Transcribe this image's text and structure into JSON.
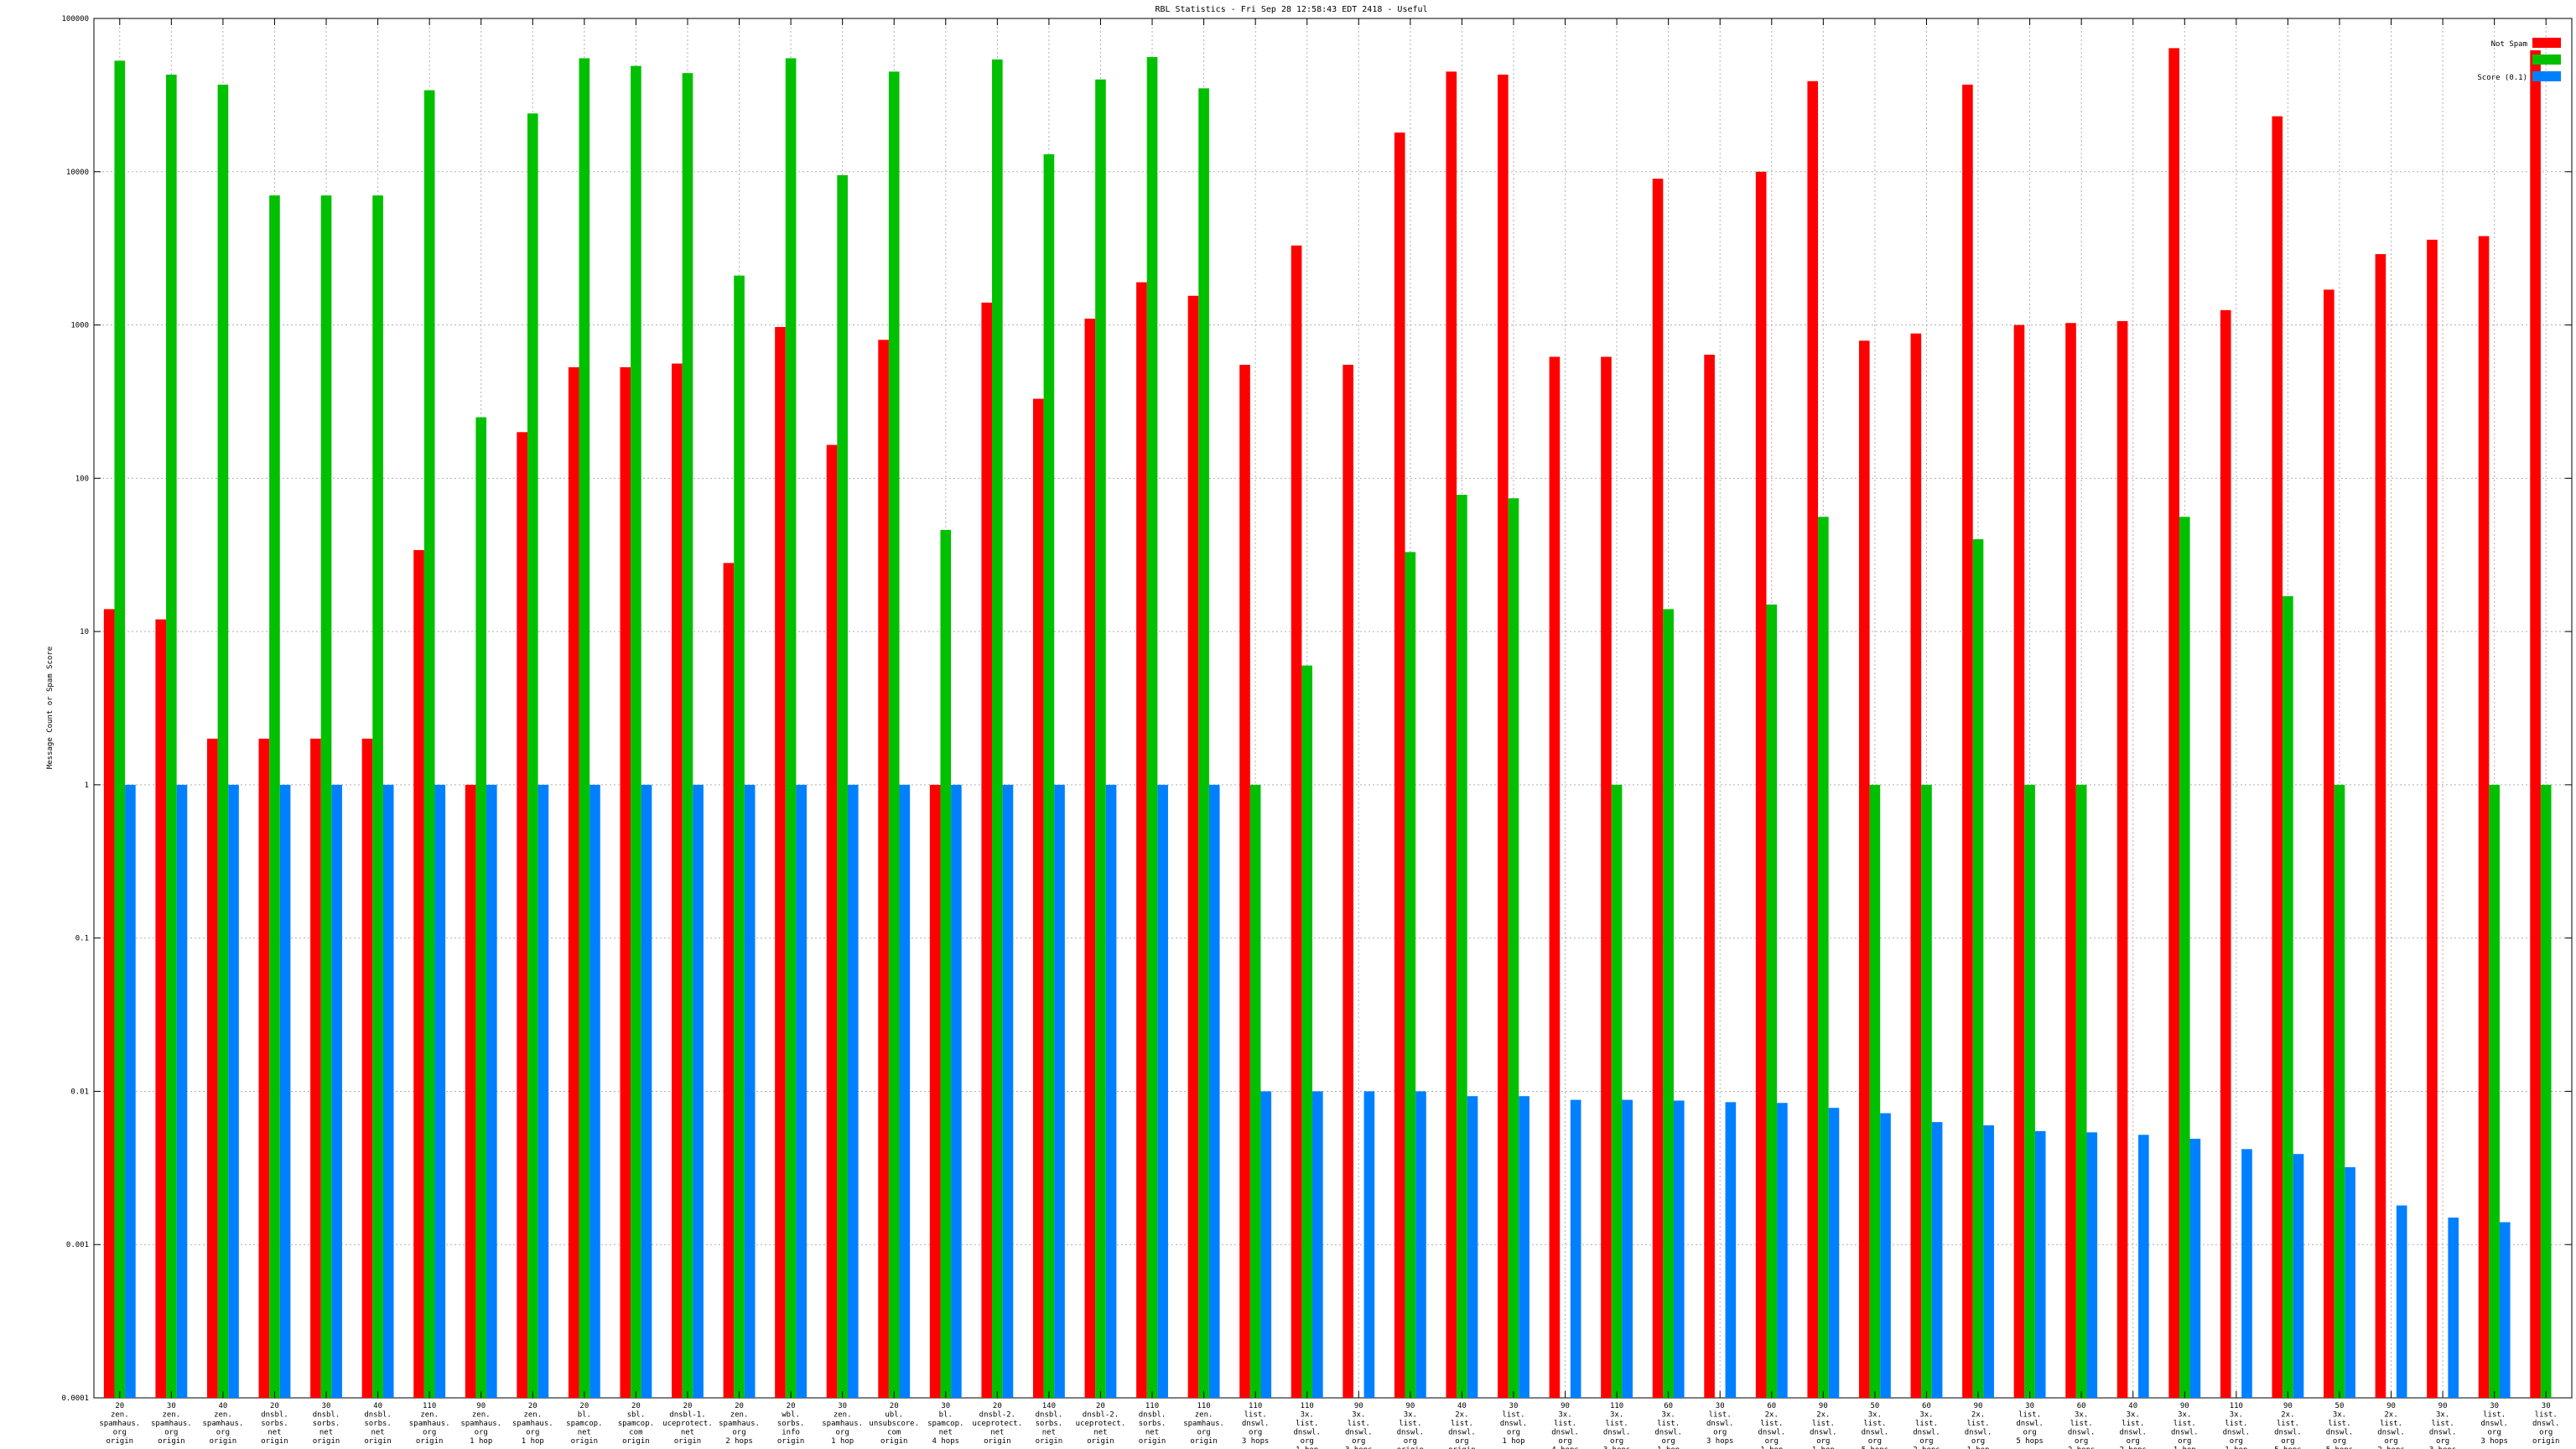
{
  "chart_data": {
    "type": "bar",
    "title": "RBL Statistics - Fri Sep 28 12:58:43 EDT 2418 - Useful",
    "ylabel": "Message Count or Spam Score",
    "xlabel": "",
    "yscale": "log",
    "ylim": [
      0.0001,
      100000
    ],
    "yticks": [
      "0.0001",
      "0.001",
      "0.01",
      "0.1",
      "1",
      "10",
      "100",
      "1000",
      "10000",
      "100000"
    ],
    "grid": true,
    "legend_position": "top-right",
    "categories": [
      "20\nzen.\nspamhaus.\norg\norigin",
      "30\nzen.\nspamhaus.\norg\norigin",
      "40\nzen.\nspamhaus.\norg\norigin",
      "20\ndnsbl.\nsorbs.\nnet\norigin",
      "30\ndnsbl.\nsorbs.\nnet\norigin",
      "40\ndnsbl.\nsorbs.\nnet\norigin",
      "110\nzen.\nspamhaus.\norg\norigin",
      "90\nzen.\nspamhaus.\norg\n1 hop",
      "20\nzen.\nspamhaus.\norg\n1 hop",
      "20\nbl.\nspamcop.\nnet\norigin",
      "20\nsbl.\nspamcop.\ncom\norigin",
      "20\ndnsbl-1.\nuceprotect.\nnet\norigin",
      "20\nzen.\nspamhaus.\norg\n2 hops",
      "20\nwbl.\nsorbs.\ninfo\norigin",
      "30\nzen.\nspamhaus.\norg\n1 hop",
      "20\nubl.\nunsubscore.\ncom\norigin",
      "30\nbl.\nspamcop.\nnet\n4 hops",
      "20\ndnsbl-2.\nuceprotect.\nnet\norigin",
      "140\ndnsbl.\nsorbs.\nnet\norigin",
      "20\ndnsbl-2.\nuceprotect.\nnet\norigin",
      "110\ndnsbl.\nsorbs.\nnet\norigin",
      "110\nzen.\nspamhaus.\norg\norigin",
      "110\nlist.\ndnswl.\norg\n3 hops",
      "110\n3x.\nlist.\ndnswl.\norg\n1 hop",
      "90\n3x.\nlist.\ndnswl.\norg\n3 hops",
      "90\n3x.\nlist.\ndnswl.\norg\norigin",
      "40\n2x.\nlist.\ndnswl.\norg\norigin",
      "30\nlist.\ndnswl.\norg\n1 hop",
      "90\n3x.\nlist.\ndnswl.\norg\n4 hops",
      "110\n3x.\nlist.\ndnswl.\norg\n3 hops",
      "60\n3x.\nlist.\ndnswl.\norg\n1 hop",
      "30\nlist.\ndnswl.\norg\n3 hops",
      "60\n2x.\nlist.\ndnswl.\norg\n1 hop",
      "90\n2x.\nlist.\ndnswl.\norg\n1 hop",
      "50\n3x.\nlist.\ndnswl.\norg\n5 hops",
      "60\n3x.\nlist.\ndnswl.\norg\n2 hops",
      "90\n2x.\nlist.\ndnswl.\norg\n1 hop",
      "30\nlist.\ndnswl.\norg\n5 hops",
      "60\n3x.\nlist.\ndnswl.\norg\n2 hops",
      "40\n3x.\nlist.\ndnswl.\norg\n2 hops",
      "90\n3x.\nlist.\ndnswl.\norg\n1 hop",
      "110\n3x.\nlist.\ndnswl.\norg\n1 hop",
      "90\n2x.\nlist.\ndnswl.\norg\n5 hops",
      "50\n3x.\nlist.\ndnswl.\norg\n5 hops",
      "90\n2x.\nlist.\ndnswl.\norg\n2 hops",
      "90\n3x.\nlist.\ndnswl.\norg\n3 hops",
      "30\nlist.\ndnswl.\norg\n3 hops",
      "30\nlist.\ndnswl.\norg\norigin"
    ],
    "series": [
      {
        "name": "Not Spam",
        "color": "#ff0000",
        "values": [
          14,
          12,
          2,
          2,
          2,
          2,
          34,
          1,
          200,
          530,
          530,
          560,
          28,
          970,
          165,
          800,
          1,
          1400,
          330,
          1100,
          1900,
          1550,
          550,
          3300,
          550,
          18000,
          45000,
          43000,
          620,
          620,
          9000,
          640,
          10000,
          39000,
          790,
          880,
          37000,
          1000,
          1030,
          1060,
          64000,
          1250,
          23000,
          1700,
          2900,
          3600,
          3800,
          62000
        ]
      },
      {
        "name": "",
        "color": "#00c000",
        "values": [
          53000,
          43000,
          37000,
          7000,
          7000,
          7000,
          34000,
          250,
          24000,
          55000,
          49000,
          44000,
          2100,
          55000,
          9500,
          45000,
          46,
          54000,
          13000,
          40000,
          56000,
          35000,
          1,
          6,
          null,
          33,
          78,
          74,
          null,
          1,
          14,
          null,
          15,
          56,
          1,
          1,
          40,
          1,
          1,
          null,
          56,
          null,
          17,
          1,
          null,
          null,
          1,
          1
        ]
      },
      {
        "name": "Score (0.1)",
        "color": "#0080ff",
        "values": [
          1,
          1,
          1,
          1,
          1,
          1,
          1,
          1,
          1,
          1,
          1,
          1,
          1,
          1,
          1,
          1,
          1,
          1,
          1,
          1,
          1,
          1,
          0.01,
          0.01,
          0.01,
          0.01,
          0.0093,
          0.0093,
          0.0088,
          0.0088,
          0.0087,
          0.0085,
          0.0084,
          0.0078,
          0.0072,
          0.0063,
          0.006,
          0.0055,
          0.0054,
          0.0052,
          0.0049,
          0.0042,
          0.0039,
          0.0032,
          0.0018,
          0.0015,
          0.0014,
          null
        ]
      }
    ]
  }
}
